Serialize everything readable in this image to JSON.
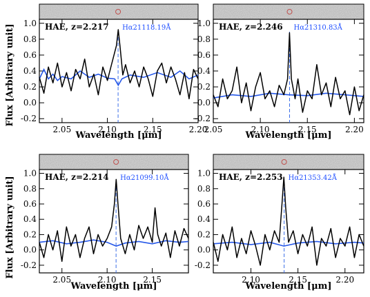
{
  "figure": {
    "ylabel": "Flux [Arbitrary unit]",
    "xlabel": "Wavelength [μm]"
  },
  "chart_data": [
    {
      "type": "line",
      "title": "HAE, z=2.217",
      "annotation": "Hα21118.19Å",
      "marker_x": 2.1118,
      "xlim": [
        2.025,
        2.2
      ],
      "ylim": [
        -0.25,
        1.05
      ],
      "xticks": [
        "2.05",
        "2.10",
        "2.15",
        "2.20"
      ],
      "xtick_values": [
        2.05,
        2.1,
        2.15,
        2.2
      ],
      "yticks": [
        "-0.2",
        "0.0",
        "0.2",
        "0.4",
        "0.6",
        "0.8",
        "1.0"
      ],
      "ytick_values": [
        -0.2,
        0.0,
        0.2,
        0.4,
        0.6,
        0.8,
        1.0
      ],
      "noise_level": 0.33,
      "spectrum": [
        [
          2.025,
          0.32
        ],
        [
          2.03,
          0.12
        ],
        [
          2.035,
          0.45
        ],
        [
          2.04,
          0.25
        ],
        [
          2.045,
          0.5
        ],
        [
          2.05,
          0.2
        ],
        [
          2.055,
          0.38
        ],
        [
          2.06,
          0.15
        ],
        [
          2.065,
          0.42
        ],
        [
          2.07,
          0.3
        ],
        [
          2.075,
          0.55
        ],
        [
          2.08,
          0.2
        ],
        [
          2.085,
          0.36
        ],
        [
          2.09,
          0.1
        ],
        [
          2.095,
          0.45
        ],
        [
          2.1,
          0.28
        ],
        [
          2.105,
          0.5
        ],
        [
          2.11,
          0.72
        ],
        [
          2.112,
          0.92
        ],
        [
          2.114,
          0.7
        ],
        [
          2.117,
          0.35
        ],
        [
          2.12,
          0.48
        ],
        [
          2.125,
          0.25
        ],
        [
          2.13,
          0.4
        ],
        [
          2.135,
          0.2
        ],
        [
          2.14,
          0.45
        ],
        [
          2.145,
          0.3
        ],
        [
          2.15,
          0.08
        ],
        [
          2.155,
          0.4
        ],
        [
          2.16,
          0.5
        ],
        [
          2.165,
          0.25
        ],
        [
          2.17,
          0.45
        ],
        [
          2.175,
          0.3
        ],
        [
          2.18,
          0.1
        ],
        [
          2.185,
          0.38
        ],
        [
          2.19,
          0.05
        ],
        [
          2.195,
          0.42
        ],
        [
          2.2,
          0.3
        ]
      ],
      "model": [
        [
          2.025,
          0.3
        ],
        [
          2.03,
          0.42
        ],
        [
          2.035,
          0.3
        ],
        [
          2.04,
          0.36
        ],
        [
          2.045,
          0.28
        ],
        [
          2.05,
          0.33
        ],
        [
          2.06,
          0.3
        ],
        [
          2.07,
          0.4
        ],
        [
          2.08,
          0.32
        ],
        [
          2.09,
          0.36
        ],
        [
          2.1,
          0.31
        ],
        [
          2.108,
          0.3
        ],
        [
          2.112,
          0.22
        ],
        [
          2.116,
          0.3
        ],
        [
          2.125,
          0.35
        ],
        [
          2.14,
          0.32
        ],
        [
          2.155,
          0.38
        ],
        [
          2.17,
          0.32
        ],
        [
          2.18,
          0.4
        ],
        [
          2.19,
          0.3
        ],
        [
          2.2,
          0.35
        ]
      ]
    },
    {
      "type": "line",
      "title": "HAE, z=2.246",
      "annotation": "Hα21310.83Å",
      "marker_x": 2.1311,
      "xlim": [
        2.05,
        2.21
      ],
      "ylim": [
        -0.25,
        1.05
      ],
      "xticks": [
        "2.05",
        "2.10",
        "2.15",
        "2.20"
      ],
      "xtick_values": [
        2.05,
        2.1,
        2.15,
        2.2
      ],
      "yticks": [
        "-0.2",
        "0.0",
        "0.2",
        "0.4",
        "0.6",
        "0.8",
        "1.0"
      ],
      "ytick_values": [
        -0.2,
        0.0,
        0.2,
        0.4,
        0.6,
        0.8,
        1.0
      ],
      "noise_level": 0.1,
      "spectrum": [
        [
          2.05,
          0.1
        ],
        [
          2.055,
          -0.05
        ],
        [
          2.06,
          0.3
        ],
        [
          2.065,
          0.05
        ],
        [
          2.07,
          0.15
        ],
        [
          2.075,
          0.45
        ],
        [
          2.08,
          0.0
        ],
        [
          2.085,
          0.25
        ],
        [
          2.09,
          -0.1
        ],
        [
          2.095,
          0.2
        ],
        [
          2.1,
          0.38
        ],
        [
          2.105,
          0.05
        ],
        [
          2.11,
          0.15
        ],
        [
          2.115,
          -0.05
        ],
        [
          2.12,
          0.22
        ],
        [
          2.125,
          0.1
        ],
        [
          2.129,
          0.3
        ],
        [
          2.131,
          0.88
        ],
        [
          2.133,
          0.3
        ],
        [
          2.137,
          0.05
        ],
        [
          2.14,
          0.3
        ],
        [
          2.145,
          -0.12
        ],
        [
          2.15,
          0.15
        ],
        [
          2.155,
          0.05
        ],
        [
          2.16,
          0.48
        ],
        [
          2.165,
          0.1
        ],
        [
          2.17,
          0.25
        ],
        [
          2.175,
          -0.05
        ],
        [
          2.18,
          0.32
        ],
        [
          2.185,
          0.05
        ],
        [
          2.19,
          0.15
        ],
        [
          2.195,
          -0.15
        ],
        [
          2.2,
          0.2
        ],
        [
          2.205,
          -0.1
        ],
        [
          2.21,
          0.1
        ]
      ],
      "model": [
        [
          2.05,
          0.06
        ],
        [
          2.07,
          0.1
        ],
        [
          2.09,
          0.08
        ],
        [
          2.11,
          0.12
        ],
        [
          2.13,
          0.1
        ],
        [
          2.15,
          0.09
        ],
        [
          2.17,
          0.12
        ],
        [
          2.19,
          0.1
        ],
        [
          2.21,
          0.08
        ]
      ]
    },
    {
      "type": "line",
      "title": "HAE, z=2.214",
      "annotation": "Hα21099.10Å",
      "marker_x": 2.1099,
      "xlim": [
        2.025,
        2.19
      ],
      "ylim": [
        -0.3,
        1.05
      ],
      "xticks": [
        "2.05",
        "2.10",
        "2.15"
      ],
      "xtick_values": [
        2.05,
        2.1,
        2.15
      ],
      "yticks": [
        "-0.2",
        "0.0",
        "0.2",
        "0.4",
        "0.6",
        "0.8",
        "1.0"
      ],
      "ytick_values": [
        -0.2,
        0.0,
        0.2,
        0.4,
        0.6,
        0.8,
        1.0
      ],
      "noise_level": 0.1,
      "spectrum": [
        [
          2.025,
          0.1
        ],
        [
          2.03,
          -0.1
        ],
        [
          2.035,
          0.2
        ],
        [
          2.04,
          0.0
        ],
        [
          2.045,
          0.25
        ],
        [
          2.05,
          -0.15
        ],
        [
          2.055,
          0.3
        ],
        [
          2.06,
          0.05
        ],
        [
          2.065,
          0.2
        ],
        [
          2.07,
          -0.1
        ],
        [
          2.075,
          0.15
        ],
        [
          2.08,
          0.3
        ],
        [
          2.085,
          -0.05
        ],
        [
          2.09,
          0.2
        ],
        [
          2.095,
          0.05
        ],
        [
          2.1,
          0.15
        ],
        [
          2.105,
          0.3
        ],
        [
          2.108,
          0.6
        ],
        [
          2.11,
          0.92
        ],
        [
          2.112,
          0.6
        ],
        [
          2.115,
          0.15
        ],
        [
          2.12,
          -0.05
        ],
        [
          2.125,
          0.2
        ],
        [
          2.13,
          0.0
        ],
        [
          2.135,
          0.32
        ],
        [
          2.14,
          0.15
        ],
        [
          2.145,
          0.3
        ],
        [
          2.15,
          0.1
        ],
        [
          2.153,
          0.55
        ],
        [
          2.156,
          0.2
        ],
        [
          2.16,
          0.05
        ],
        [
          2.165,
          0.22
        ],
        [
          2.17,
          -0.1
        ],
        [
          2.175,
          0.25
        ],
        [
          2.18,
          0.05
        ],
        [
          2.185,
          0.28
        ],
        [
          2.19,
          0.15
        ]
      ],
      "model": [
        [
          2.025,
          0.1
        ],
        [
          2.04,
          0.12
        ],
        [
          2.055,
          0.08
        ],
        [
          2.07,
          0.1
        ],
        [
          2.085,
          0.13
        ],
        [
          2.1,
          0.1
        ],
        [
          2.11,
          0.05
        ],
        [
          2.12,
          0.09
        ],
        [
          2.135,
          0.11
        ],
        [
          2.15,
          0.08
        ],
        [
          2.165,
          0.12
        ],
        [
          2.18,
          0.1
        ],
        [
          2.19,
          0.11
        ]
      ]
    },
    {
      "type": "line",
      "title": "HAE, z=2.253",
      "annotation": "Hα21353.42Å",
      "marker_x": 2.1353,
      "xlim": [
        2.06,
        2.22
      ],
      "ylim": [
        -0.3,
        1.05
      ],
      "xticks": [
        "2.10",
        "2.15",
        "2.20"
      ],
      "xtick_values": [
        2.1,
        2.15,
        2.2
      ],
      "yticks": [
        "-0.2",
        "0.0",
        "0.2",
        "0.4",
        "0.6",
        "0.8",
        "1.0"
      ],
      "ytick_values": [
        -0.2,
        0.0,
        0.2,
        0.4,
        0.6,
        0.8,
        1.0
      ],
      "noise_level": 0.1,
      "spectrum": [
        [
          2.06,
          0.1
        ],
        [
          2.065,
          -0.15
        ],
        [
          2.07,
          0.2
        ],
        [
          2.075,
          0.0
        ],
        [
          2.08,
          0.3
        ],
        [
          2.085,
          -0.1
        ],
        [
          2.09,
          0.15
        ],
        [
          2.095,
          -0.05
        ],
        [
          2.1,
          0.25
        ],
        [
          2.105,
          0.05
        ],
        [
          2.11,
          -0.2
        ],
        [
          2.115,
          0.2
        ],
        [
          2.12,
          0.0
        ],
        [
          2.125,
          0.25
        ],
        [
          2.13,
          0.1
        ],
        [
          2.133,
          0.6
        ],
        [
          2.135,
          0.95
        ],
        [
          2.137,
          0.55
        ],
        [
          2.14,
          0.1
        ],
        [
          2.145,
          0.25
        ],
        [
          2.15,
          -0.05
        ],
        [
          2.155,
          0.2
        ],
        [
          2.16,
          0.05
        ],
        [
          2.165,
          0.3
        ],
        [
          2.17,
          -0.2
        ],
        [
          2.175,
          0.15
        ],
        [
          2.18,
          0.05
        ],
        [
          2.185,
          0.28
        ],
        [
          2.19,
          -0.1
        ],
        [
          2.195,
          0.15
        ],
        [
          2.2,
          0.05
        ],
        [
          2.205,
          0.3
        ],
        [
          2.21,
          -0.1
        ],
        [
          2.215,
          0.2
        ],
        [
          2.22,
          0.05
        ]
      ],
      "model": [
        [
          2.06,
          0.08
        ],
        [
          2.08,
          0.1
        ],
        [
          2.1,
          0.07
        ],
        [
          2.12,
          0.1
        ],
        [
          2.135,
          0.05
        ],
        [
          2.15,
          0.09
        ],
        [
          2.17,
          0.11
        ],
        [
          2.19,
          0.08
        ],
        [
          2.21,
          0.1
        ],
        [
          2.22,
          0.09
        ]
      ]
    }
  ]
}
